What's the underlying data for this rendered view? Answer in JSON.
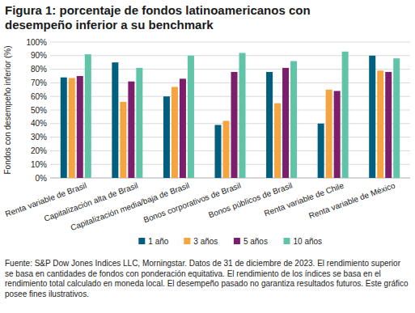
{
  "chart_data": {
    "type": "bar",
    "title": "Figura 1: porcentaje de fondos latinoamericanos con desempeño inferior a su benchmark",
    "y_label": "Fondos con desempeño inferior (%)",
    "annotations": [
      "Fuente: S&P Dow Jones Indices LLC, Morningstar. Datos de 31 de diciembre de 2023. El rendimiento superior se basa en cantidades de fondos con ponderación equitativa. El rendimiento de los índices se basa en el rendimiento total calculado en moneda local. El desempeño pasado no garantiza resultados futuros. Este gráfico posee fines ilustrativos."
    ],
    "categories": [
      "Renta variable de Brasil",
      "Capitalización alta de Brasil",
      "Capitalización media/baja de Brasil",
      "Bonos corporativos de Brasil",
      "Bonos públicos de Brasil",
      "Renta variable de Chile",
      "Renta variable de México"
    ],
    "series": [
      {
        "name": "1 año",
        "color": "#005f7f",
        "values": [
          74,
          85,
          60,
          39,
          78,
          40,
          90
        ]
      },
      {
        "name": "3 años",
        "color": "#f4a53f",
        "values": [
          73.5,
          56,
          67,
          42,
          55,
          65,
          79
        ]
      },
      {
        "name": "5 años",
        "color": "#7b1f6c",
        "values": [
          75,
          71,
          73,
          78,
          81,
          64,
          78
        ]
      },
      {
        "name": "10 años",
        "color": "#5fc4a8",
        "values": [
          91,
          81,
          90,
          92,
          86,
          93,
          88
        ]
      }
    ],
    "ylim": [
      0,
      100
    ],
    "yticks": [
      {
        "value": 0,
        "label": "0%"
      },
      {
        "value": 10,
        "label": "10%"
      },
      {
        "value": 20,
        "label": "20%"
      },
      {
        "value": 30,
        "label": "30%"
      },
      {
        "value": 40,
        "label": "40%"
      },
      {
        "value": 50,
        "label": "50%"
      },
      {
        "value": 60,
        "label": "60%"
      },
      {
        "value": 70,
        "label": "70%"
      },
      {
        "value": 80,
        "label": "80%"
      },
      {
        "value": 90,
        "label": "90%"
      },
      {
        "value": 100,
        "label": "100%"
      }
    ],
    "grid": true,
    "legend": "bottom"
  }
}
